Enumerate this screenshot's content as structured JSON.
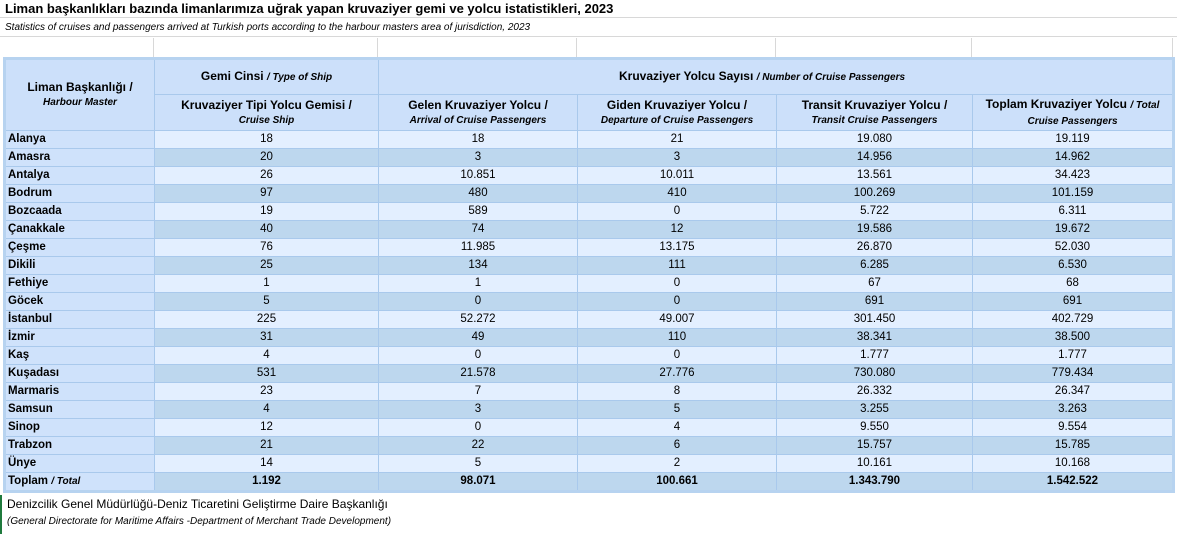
{
  "title": "Liman başkanlıkları bazında limanlarımıza uğrak yapan kruvaziyer gemi ve yolcu istatistikleri, 2023",
  "subtitle": "Statistics of cruises and passengers arrived at Turkish ports according to the harbour masters area of jurisdiction, 2023",
  "header": {
    "port": {
      "tr": "Liman Başkanlığı /",
      "en": "Harbour Master"
    },
    "ship_type": {
      "tr": "Gemi Cinsi",
      "en": "/ Type of Ship"
    },
    "passengers": {
      "tr": "Kruvaziyer Yolcu Sayısı",
      "en": "/ Number of Cruise Passengers"
    },
    "columns": [
      {
        "tr": "Kruvaziyer Tipi Yolcu Gemisi /",
        "en": "Cruise Ship"
      },
      {
        "tr": "Gelen Kruvaziyer Yolcu /",
        "en": "Arrival of Cruise Passengers"
      },
      {
        "tr": "Giden Kruvaziyer Yolcu /",
        "en": "Departure of Cruise Passengers"
      },
      {
        "tr": "Transit Kruvaziyer Yolcu /",
        "en": "Transit Cruise Passengers"
      },
      {
        "tr": "Toplam Kruvaziyer Yolcu",
        "en": "/ Total Cruise Passengers"
      }
    ]
  },
  "rows": [
    {
      "port": "Alanya",
      "values": [
        "18",
        "18",
        "21",
        "19.080",
        "19.119"
      ]
    },
    {
      "port": "Amasra",
      "values": [
        "20",
        "3",
        "3",
        "14.956",
        "14.962"
      ]
    },
    {
      "port": "Antalya",
      "values": [
        "26",
        "10.851",
        "10.011",
        "13.561",
        "34.423"
      ]
    },
    {
      "port": "Bodrum",
      "values": [
        "97",
        "480",
        "410",
        "100.269",
        "101.159"
      ]
    },
    {
      "port": "Bozcaada",
      "values": [
        "19",
        "589",
        "0",
        "5.722",
        "6.311"
      ]
    },
    {
      "port": "Çanakkale",
      "values": [
        "40",
        "74",
        "12",
        "19.586",
        "19.672"
      ]
    },
    {
      "port": "Çeşme",
      "values": [
        "76",
        "11.985",
        "13.175",
        "26.870",
        "52.030"
      ]
    },
    {
      "port": "Dikili",
      "values": [
        "25",
        "134",
        "111",
        "6.285",
        "6.530"
      ]
    },
    {
      "port": "Fethiye",
      "values": [
        "1",
        "1",
        "0",
        "67",
        "68"
      ]
    },
    {
      "port": "Göcek",
      "values": [
        "5",
        "0",
        "0",
        "691",
        "691"
      ]
    },
    {
      "port": "İstanbul",
      "values": [
        "225",
        "52.272",
        "49.007",
        "301.450",
        "402.729"
      ]
    },
    {
      "port": "İzmir",
      "values": [
        "31",
        "49",
        "110",
        "38.341",
        "38.500"
      ]
    },
    {
      "port": "Kaş",
      "values": [
        "4",
        "0",
        "0",
        "1.777",
        "1.777"
      ]
    },
    {
      "port": "Kuşadası",
      "values": [
        "531",
        "21.578",
        "27.776",
        "730.080",
        "779.434"
      ]
    },
    {
      "port": "Marmaris",
      "values": [
        "23",
        "7",
        "8",
        "26.332",
        "26.347"
      ]
    },
    {
      "port": "Samsun",
      "values": [
        "4",
        "3",
        "5",
        "3.255",
        "3.263"
      ]
    },
    {
      "port": "Sinop",
      "values": [
        "12",
        "0",
        "4",
        "9.550",
        "9.554"
      ]
    },
    {
      "port": "Trabzon",
      "values": [
        "21",
        "22",
        "6",
        "15.757",
        "15.785"
      ]
    },
    {
      "port": "Ünye",
      "values": [
        "14",
        "5",
        "2",
        "10.161",
        "10.168"
      ]
    }
  ],
  "total": {
    "label_tr": "Toplam",
    "label_en": "/ Total",
    "values": [
      "1.192",
      "98.071",
      "100.661",
      "1.343.790",
      "1.542.522"
    ]
  },
  "footer": {
    "source_tr": "Denizcilik Genel Müdürlüğü-Deniz Ticaretini Geliştirme Daire Başkanlığı",
    "source_en": "(General Directorate for Maritime Affairs -Department of Merchant Trade Development)"
  }
}
